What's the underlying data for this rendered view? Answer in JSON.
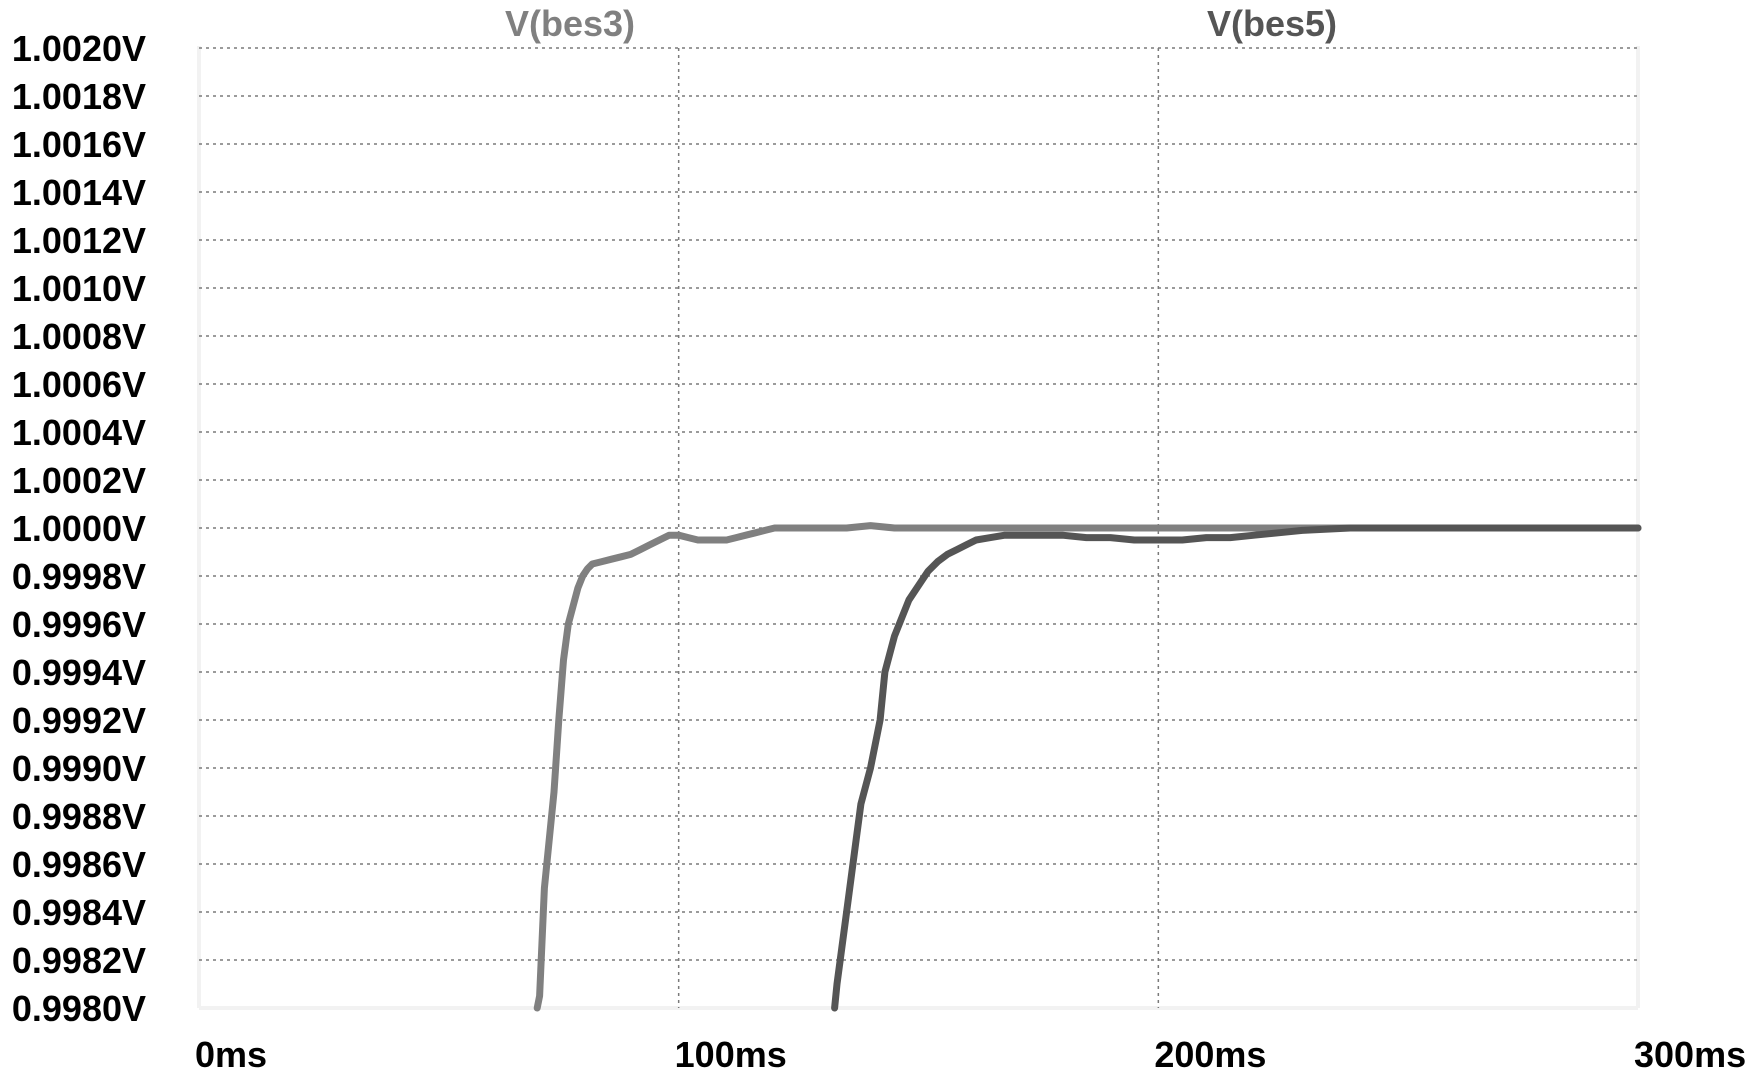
{
  "chart_data": {
    "type": "line",
    "title": "",
    "xlabel": "",
    "ylabel": "",
    "xlim": [
      0,
      300
    ],
    "ylim": [
      0.998,
      1.002
    ],
    "grid": true,
    "x_ticks": [
      {
        "value": 0,
        "label": "0ms"
      },
      {
        "value": 100,
        "label": "100ms"
      },
      {
        "value": 200,
        "label": "200ms"
      },
      {
        "value": 300,
        "label": "300ms"
      }
    ],
    "y_ticks": [
      {
        "value": 1.002,
        "label": "1.0020V"
      },
      {
        "value": 1.0018,
        "label": "1.0018V"
      },
      {
        "value": 1.0016,
        "label": "1.0016V"
      },
      {
        "value": 1.0014,
        "label": "1.0014V"
      },
      {
        "value": 1.0012,
        "label": "1.0012V"
      },
      {
        "value": 1.001,
        "label": "1.0010V"
      },
      {
        "value": 1.0008,
        "label": "1.0008V"
      },
      {
        "value": 1.0006,
        "label": "1.0006V"
      },
      {
        "value": 1.0004,
        "label": "1.0004V"
      },
      {
        "value": 1.0002,
        "label": "1.0002V"
      },
      {
        "value": 1.0,
        "label": "1.0000V"
      },
      {
        "value": 0.9998,
        "label": "0.9998V"
      },
      {
        "value": 0.9996,
        "label": "0.9996V"
      },
      {
        "value": 0.9994,
        "label": "0.9994V"
      },
      {
        "value": 0.9992,
        "label": "0.9992V"
      },
      {
        "value": 0.999,
        "label": "0.9990V"
      },
      {
        "value": 0.9988,
        "label": "0.9988V"
      },
      {
        "value": 0.9986,
        "label": "0.9986V"
      },
      {
        "value": 0.9984,
        "label": "0.9984V"
      },
      {
        "value": 0.9982,
        "label": "0.9982V"
      },
      {
        "value": 0.998,
        "label": "0.9980V"
      }
    ],
    "series": [
      {
        "name": "V(bes3)",
        "color": "#808080",
        "x": [
          70.5,
          71,
          72,
          74,
          75,
          76,
          77,
          79,
          80,
          81,
          82,
          84,
          86,
          88,
          90,
          92,
          94,
          96,
          98,
          100,
          102,
          104,
          106,
          108,
          110,
          112,
          114,
          116,
          118,
          120,
          125,
          130,
          135,
          140,
          145,
          150,
          160,
          170,
          180,
          190,
          200,
          220,
          240,
          260,
          280,
          300
        ],
        "y": [
          0.998,
          0.99805,
          0.9985,
          0.9989,
          0.9992,
          0.99945,
          0.9996,
          0.99975,
          0.9998,
          0.99983,
          0.99985,
          0.99986,
          0.99987,
          0.99988,
          0.99989,
          0.99991,
          0.99993,
          0.99995,
          0.99997,
          0.99997,
          0.99996,
          0.99995,
          0.99995,
          0.99995,
          0.99995,
          0.99996,
          0.99997,
          0.99998,
          0.99999,
          1.0,
          1.0,
          1.0,
          1.0,
          1.00001,
          1.0,
          1.0,
          1.0,
          1.0,
          1.0,
          1.0,
          1.0,
          1.0,
          1.0,
          1.0,
          1.0,
          1.0
        ]
      },
      {
        "name": "V(bes5)",
        "color": "#555555",
        "x": [
          132.5,
          133,
          134,
          135,
          137,
          138,
          140,
          142,
          143,
          145,
          146,
          148,
          150,
          152,
          154,
          156,
          158,
          160,
          162,
          165,
          168,
          170,
          175,
          180,
          185,
          190,
          195,
          200,
          205,
          210,
          215,
          220,
          225,
          230,
          240,
          260,
          280,
          300
        ],
        "y": [
          0.998,
          0.9981,
          0.99825,
          0.9984,
          0.9987,
          0.99885,
          0.999,
          0.9992,
          0.9994,
          0.99955,
          0.9996,
          0.9997,
          0.99976,
          0.99982,
          0.99986,
          0.99989,
          0.99991,
          0.99993,
          0.99995,
          0.99996,
          0.99997,
          0.99997,
          0.99997,
          0.99997,
          0.99996,
          0.99996,
          0.99995,
          0.99995,
          0.99995,
          0.99996,
          0.99996,
          0.99997,
          0.99998,
          0.99999,
          1.0,
          1.0,
          1.0,
          1.0
        ]
      }
    ]
  }
}
